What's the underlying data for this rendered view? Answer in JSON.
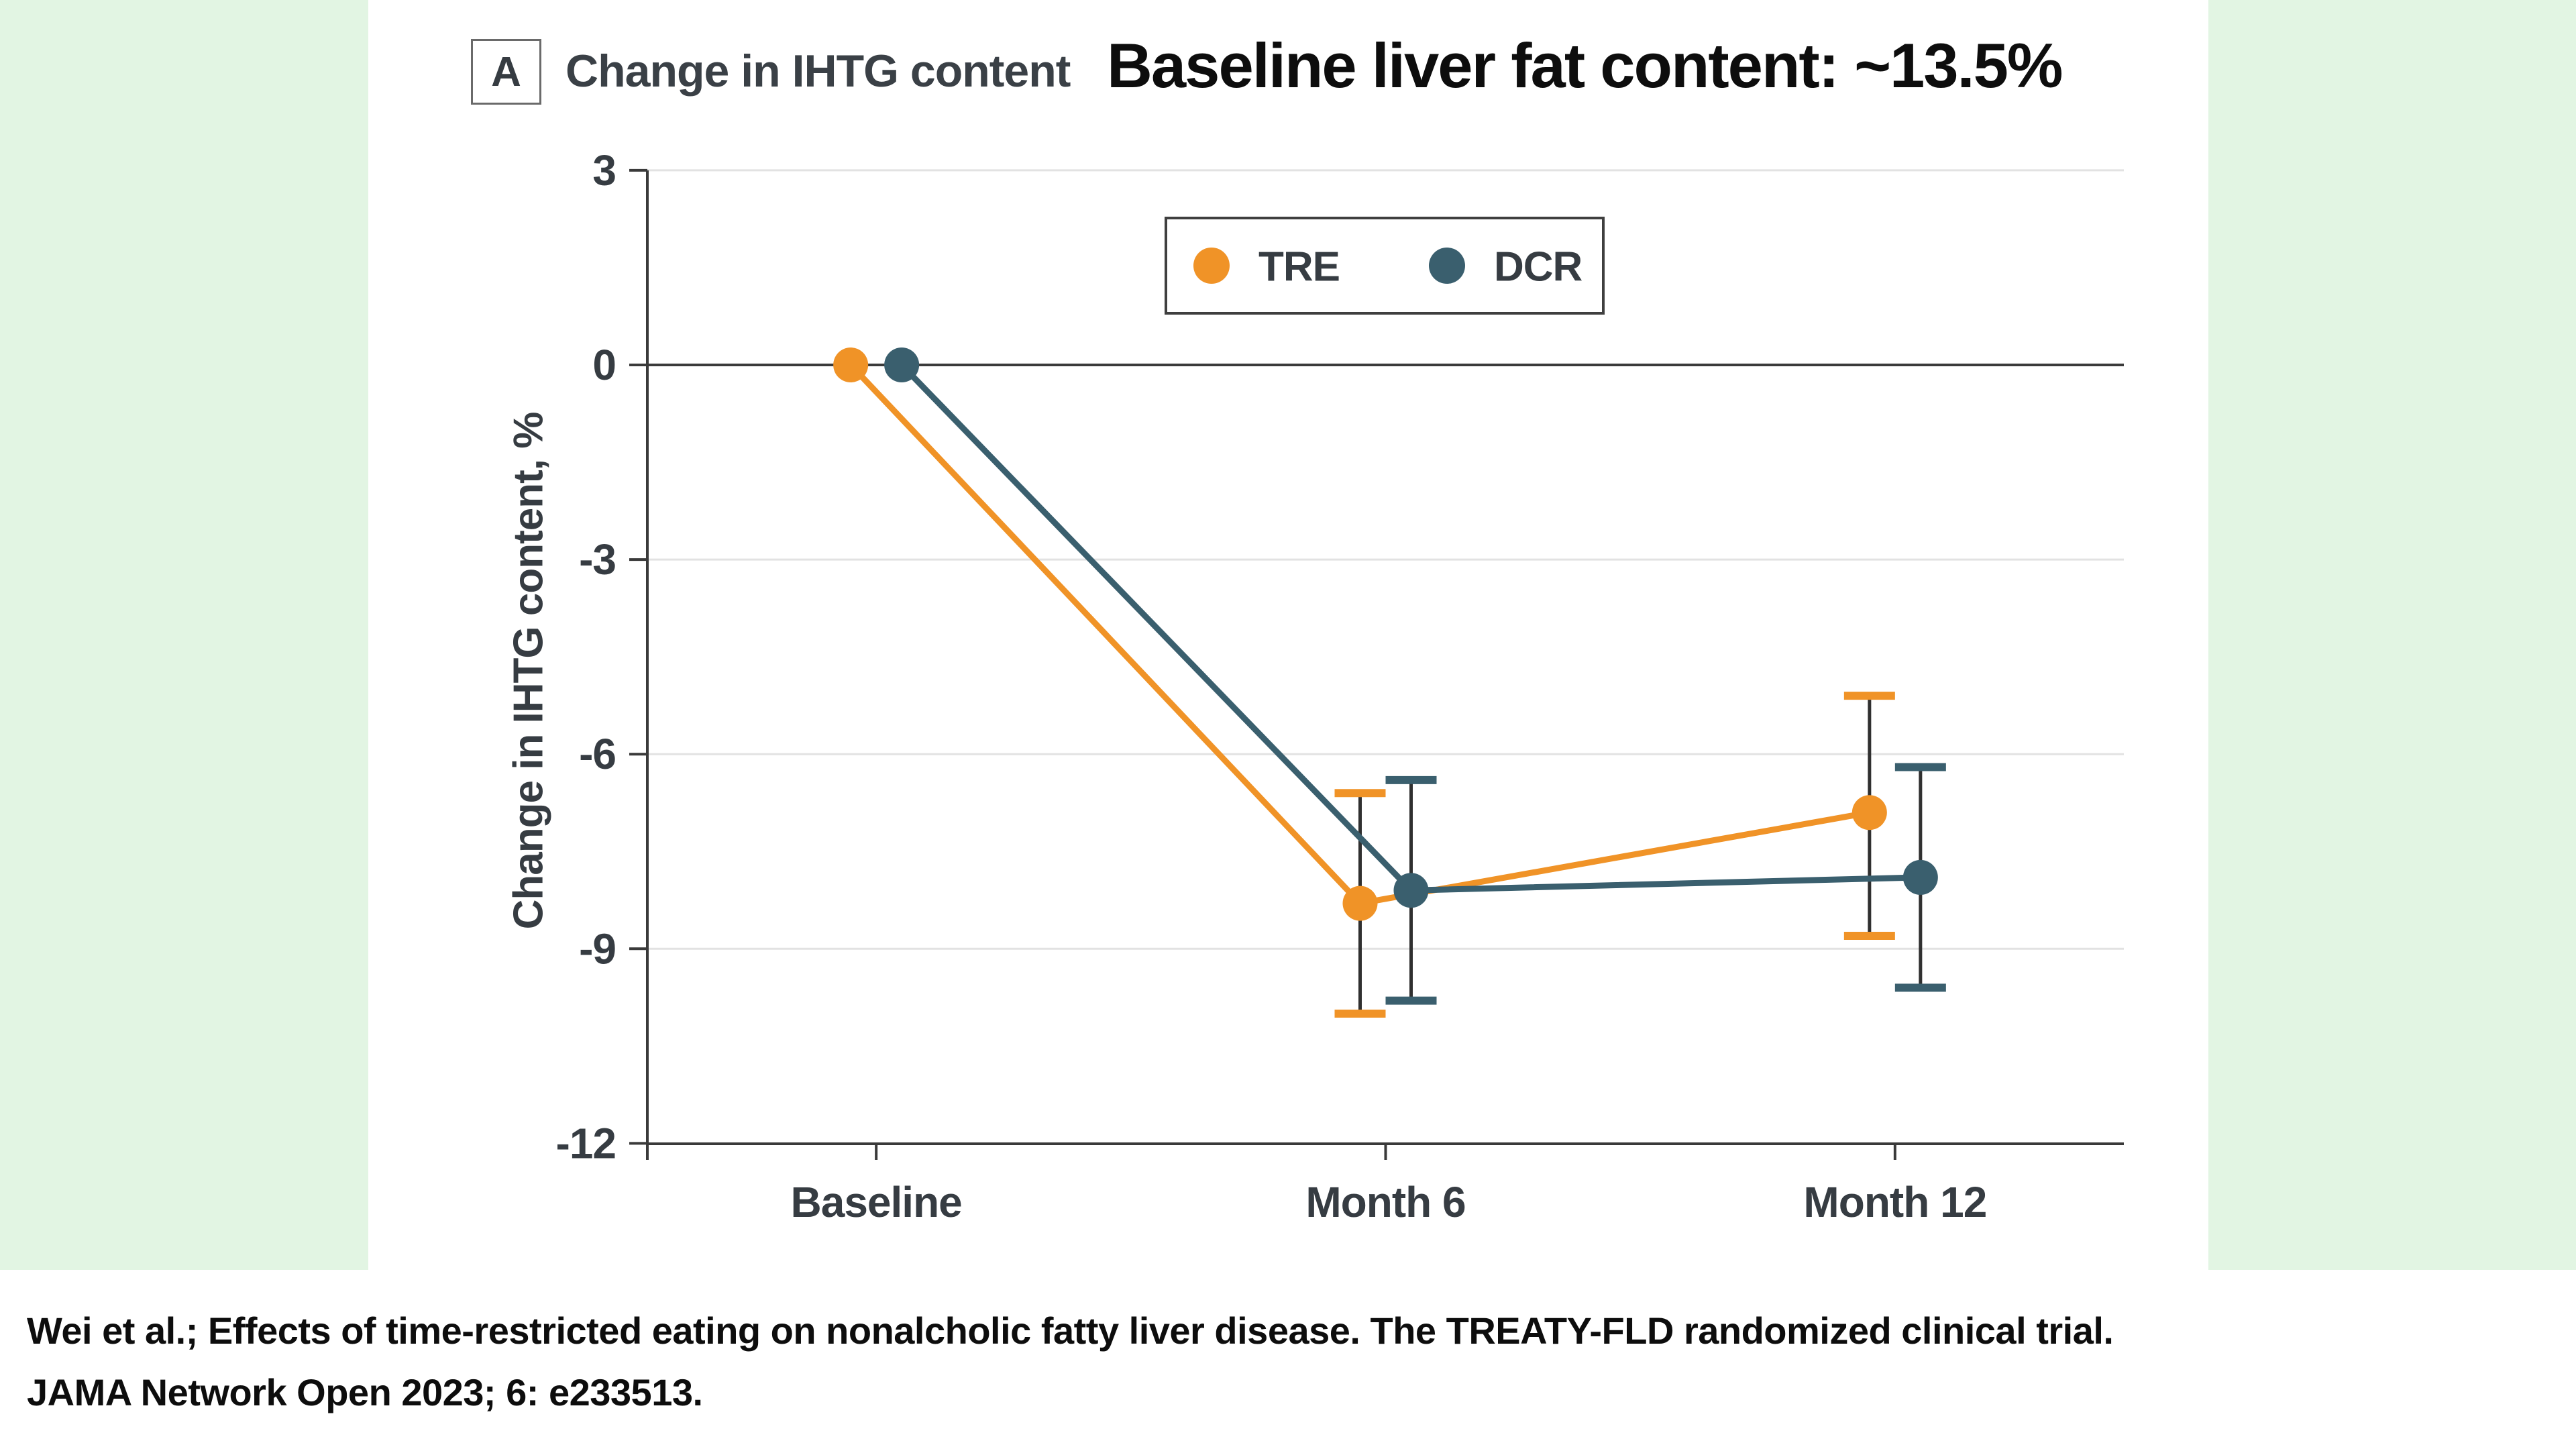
{
  "page": {
    "background": "#FFFFFF",
    "band_color": "#E2F5E3",
    "panel_color": "#FFFFFF"
  },
  "header": {
    "panel_label": "A",
    "panel_title": "Change in IHTG content",
    "main_title": "Baseline liver fat content: ~13.5%"
  },
  "chart_data": {
    "type": "line",
    "categories": [
      "Baseline",
      "Month 6",
      "Month 12"
    ],
    "ylabel": "Change in IHTG content, %",
    "ylim": [
      -12,
      3
    ],
    "yticks": [
      3,
      0,
      -3,
      -6,
      -9,
      -12
    ],
    "ytick_labels": [
      "3",
      "0",
      "-3",
      "-6",
      "-9",
      "-12"
    ],
    "grid": "horizontal-light, zero-line dark",
    "legend_position": "top-center-inside-box",
    "axis_color": "#3A3A3A",
    "grid_color": "#E2E2E2",
    "error_bar_color": "#303030",
    "series": [
      {
        "name": "TRE",
        "color": "#F09327",
        "values": [
          0,
          -8.3,
          -6.9
        ],
        "ci_low": [
          null,
          -10.0,
          -8.8
        ],
        "ci_high": [
          null,
          -6.6,
          -5.1
        ]
      },
      {
        "name": "DCR",
        "color": "#3A5F6E",
        "values": [
          0,
          -8.1,
          -7.9
        ],
        "ci_low": [
          null,
          -9.8,
          -9.6
        ],
        "ci_high": [
          null,
          -6.4,
          -6.2
        ]
      }
    ]
  },
  "citation": {
    "line1": "Wei et al.; Effects of time-restricted eating on nonalcholic fatty liver disease. The TREATY-FLD randomized clinical trial.",
    "line2": "JAMA Network Open 2023; 6: e233513."
  }
}
